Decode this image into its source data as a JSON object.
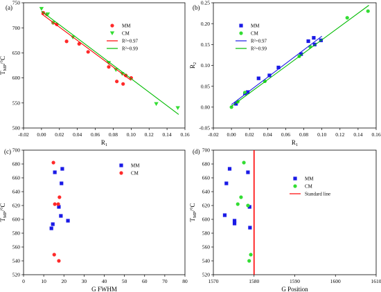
{
  "chart_data": [
    {
      "panel": "(a)",
      "type": "scatter",
      "xlabel": "R1",
      "ylabel": "TMP/°C",
      "xlim": [
        -0.02,
        0.16
      ],
      "ylim": [
        500,
        750
      ],
      "x_ticks": [
        -0.02,
        0.0,
        0.02,
        0.04,
        0.06,
        0.08,
        0.1,
        0.12,
        0.14,
        0.16
      ],
      "y_ticks": [
        500,
        550,
        600,
        650,
        700,
        750
      ],
      "legend_position": "top-right",
      "series": [
        {
          "name": "MM",
          "marker": "circle",
          "color": "#ff2a2a",
          "points": [
            [
              0.002,
              730
            ],
            [
              0.006,
              727
            ],
            [
              0.013,
              710
            ],
            [
              0.017,
              707
            ],
            [
              0.028,
              673
            ],
            [
              0.042,
              668
            ],
            [
              0.052,
              652
            ],
            [
              0.075,
              622
            ],
            [
              0.084,
              593
            ],
            [
              0.091,
              588
            ],
            [
              0.094,
              605
            ],
            [
              0.1,
              600
            ]
          ]
        },
        {
          "name": "CM",
          "marker": "triangle-down",
          "color": "#33dd33",
          "points": [
            [
              0.0,
              738
            ],
            [
              0.007,
              727
            ],
            [
              0.013,
              710
            ],
            [
              0.035,
              681
            ],
            [
              0.075,
              630
            ],
            [
              0.083,
              616
            ],
            [
              0.09,
              608
            ],
            [
              0.128,
              548
            ],
            [
              0.152,
              540
            ]
          ]
        },
        {
          "name": "R²=0.97",
          "marker": "line",
          "color": "#ff0000",
          "points": [
            [
              0.0,
              728
            ],
            [
              0.1,
              595
            ]
          ]
        },
        {
          "name": "R²=0.99",
          "marker": "line",
          "color": "#00bb00",
          "points": [
            [
              0.0,
              733
            ],
            [
              0.153,
              527
            ]
          ]
        }
      ]
    },
    {
      "panel": "(b)",
      "type": "scatter",
      "xlabel": "R1",
      "ylabel": "R2",
      "xlim": [
        -0.02,
        0.16
      ],
      "ylim": [
        -0.05,
        0.25
      ],
      "x_ticks": [
        -0.02,
        0.0,
        0.02,
        0.04,
        0.06,
        0.08,
        0.1,
        0.12,
        0.14,
        0.16
      ],
      "y_ticks": [
        -0.05,
        0.0,
        0.05,
        0.1,
        0.15,
        0.2,
        0.25
      ],
      "legend_position": "top-left",
      "series": [
        {
          "name": "MM",
          "marker": "square",
          "color": "#1a1ae6",
          "points": [
            [
              0.005,
              0.008
            ],
            [
              0.015,
              0.033
            ],
            [
              0.018,
              0.036
            ],
            [
              0.03,
              0.069
            ],
            [
              0.042,
              0.076
            ],
            [
              0.052,
              0.095
            ],
            [
              0.077,
              0.127
            ],
            [
              0.085,
              0.158
            ],
            [
              0.091,
              0.166
            ],
            [
              0.092,
              0.15
            ],
            [
              0.099,
              0.16
            ]
          ]
        },
        {
          "name": "CM",
          "marker": "circle",
          "color": "#33dd33",
          "points": [
            [
              0.0,
              0.0
            ],
            [
              0.007,
              0.013
            ],
            [
              0.015,
              0.035
            ],
            [
              0.037,
              0.062
            ],
            [
              0.075,
              0.122
            ],
            [
              0.087,
              0.145
            ],
            [
              0.128,
              0.214
            ],
            [
              0.151,
              0.23
            ]
          ]
        },
        {
          "name": "R²=0.97",
          "marker": "line",
          "color": "#1a1ae6",
          "points": [
            [
              0.0,
              0.006
            ],
            [
              0.1,
              0.17
            ]
          ]
        },
        {
          "name": "R²=0.99",
          "marker": "line",
          "color": "#00bb00",
          "points": [
            [
              0.0,
              0.002
            ],
            [
              0.152,
              0.244
            ]
          ]
        }
      ]
    },
    {
      "panel": "(c)",
      "type": "scatter",
      "xlabel": "G FWHM",
      "ylabel": "TMP/°C",
      "xlim": [
        0,
        80
      ],
      "ylim": [
        520,
        700
      ],
      "x_ticks": [
        0,
        10,
        20,
        30,
        40,
        50,
        60,
        70,
        80
      ],
      "y_ticks": [
        520,
        540,
        560,
        580,
        600,
        620,
        640,
        660,
        680,
        700
      ],
      "legend_position": "top-right",
      "series": [
        {
          "name": "MM",
          "marker": "square",
          "color": "#1a1ae6",
          "points": [
            [
              13.8,
              587
            ],
            [
              14.5,
              593
            ],
            [
              15.5,
              668
            ],
            [
              17.5,
              618
            ],
            [
              18.5,
              605
            ],
            [
              18.8,
              652
            ],
            [
              19.2,
              673
            ],
            [
              22.0,
              598
            ]
          ]
        },
        {
          "name": "CM",
          "marker": "circle",
          "color": "#ff2a2a",
          "points": [
            [
              14.8,
              682
            ],
            [
              15.2,
              549
            ],
            [
              15.5,
              622
            ],
            [
              17.2,
              622
            ],
            [
              17.8,
              632
            ],
            [
              17.5,
              540
            ]
          ]
        }
      ]
    },
    {
      "panel": "(d)",
      "type": "scatter",
      "xlabel": "G Position",
      "ylabel": "TMP/°C",
      "xlim": [
        1570,
        1610
      ],
      "ylim": [
        520,
        700
      ],
      "x_ticks": [
        1570,
        1580,
        1590,
        1600,
        1610
      ],
      "y_ticks": [
        520,
        540,
        560,
        580,
        600,
        620,
        640,
        660,
        680,
        700
      ],
      "legend_position": "top-right",
      "series": [
        {
          "name": "MM",
          "marker": "square",
          "color": "#1a1ae6",
          "points": [
            [
              1572.8,
              606
            ],
            [
              1573.2,
              652
            ],
            [
              1574.0,
              673
            ],
            [
              1575.2,
              598
            ],
            [
              1575.2,
              594
            ],
            [
              1578.5,
              668
            ],
            [
              1578.9,
              618
            ],
            [
              1579.0,
              588
            ]
          ]
        },
        {
          "name": "CM",
          "marker": "circle",
          "color": "#33dd33",
          "points": [
            [
              1576.0,
              622
            ],
            [
              1576.8,
              632
            ],
            [
              1577.5,
              682
            ],
            [
              1578.5,
              620
            ],
            [
              1578.8,
              540
            ],
            [
              1579.2,
              549
            ]
          ]
        },
        {
          "name": "Standard line",
          "marker": "vline",
          "color": "#ff0000",
          "x": 1580
        }
      ]
    }
  ]
}
